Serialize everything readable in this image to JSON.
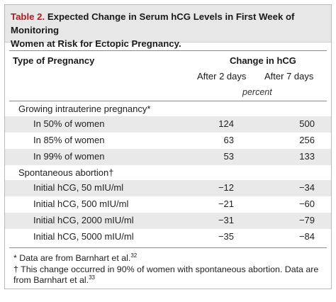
{
  "table": {
    "label": "Table 2.",
    "title_line1": "Expected Change in Serum hCG Levels in First Week of Monitoring",
    "title_line2": "Women at Risk for Ectopic Pregnancy.",
    "col_type_header": "Type of Pregnancy",
    "col_change_header": "Change in hCG",
    "col_after2": "After 2 days",
    "col_after7": "After 7 days",
    "unit": "percent",
    "sections": [
      {
        "heading": "Growing intrauterine pregnancy*",
        "rows": [
          {
            "label": "In 50% of women",
            "after2": "124",
            "after7": "500"
          },
          {
            "label": "In 85% of women",
            "after2": "63",
            "after7": "256"
          },
          {
            "label": "In 99% of women",
            "after2": "53",
            "after7": "133"
          }
        ]
      },
      {
        "heading": "Spontaneous abortion†",
        "rows": [
          {
            "label": "Initial hCG, 50 mIU/ml",
            "after2": "−12",
            "after7": "−34"
          },
          {
            "label": "Initial hCG, 500 mIU/ml",
            "after2": "−21",
            "after7": "−60"
          },
          {
            "label": "Initial hCG, 2000 mIU/ml",
            "after2": "−31",
            "after7": "−79"
          },
          {
            "label": "Initial hCG, 5000 mIU/ml",
            "after2": "−35",
            "after7": "−84"
          }
        ]
      }
    ],
    "footnotes": [
      {
        "mark": "*",
        "text": "Data are from Barnhart et al.",
        "ref": "32"
      },
      {
        "mark": "†",
        "text_line1": "This change occurred in 90% of women with spontaneous abortion. Data are",
        "text_line2": "from Barnhart et al.",
        "ref": "33"
      }
    ]
  },
  "colors": {
    "label_red": "#b01c22",
    "title_bg": "#e7e7e7",
    "row_shade": "#e9e9e9"
  }
}
